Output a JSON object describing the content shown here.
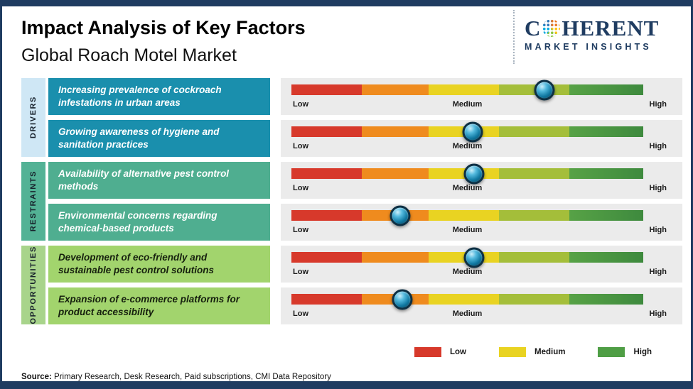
{
  "header": {
    "title": "Impact Analysis of Key Factors",
    "subtitle": "Global Roach Motel Market",
    "logo": {
      "name_left": "C",
      "name_right": "HERENT",
      "tagline": "MARKET INSIGHTS"
    }
  },
  "groups": [
    {
      "label": "DRIVERS"
    },
    {
      "label": "RESTRAINTS"
    },
    {
      "label": "OPPORTUNITIES"
    }
  ],
  "scale": {
    "low": "Low",
    "medium": "Medium",
    "high": "High"
  },
  "rows": [
    {
      "factor": "Increasing prevalence of cockroach infestations in urban areas",
      "group": "DRIVERS",
      "marker_pos": 72
    },
    {
      "factor": "Growing awareness of hygiene and sanitation practices",
      "group": "DRIVERS",
      "marker_pos": 51.5
    },
    {
      "factor": "Availability of alternative pest control methods",
      "group": "RESTRAINTS",
      "marker_pos": 52
    },
    {
      "factor": "Environmental concerns regarding chemical-based products",
      "group": "RESTRAINTS",
      "marker_pos": 31
    },
    {
      "factor": "Development of eco-friendly and sustainable pest control solutions",
      "group": "OPPORTUNITIES",
      "marker_pos": 52
    },
    {
      "factor": "Expansion of e-commerce platforms for product accessibility",
      "group": "OPPORTUNITIES",
      "marker_pos": 31.5
    }
  ],
  "legend": [
    {
      "label": "Low",
      "color": "#d7392b"
    },
    {
      "label": "Medium",
      "color": "#e9d322"
    },
    {
      "label": "High",
      "color": "#4f9e45"
    }
  ],
  "source": {
    "prefix": "Source:",
    "text": "Primary Research, Desk Research, Paid subscriptions, CMI Data Repository"
  },
  "colors": {
    "frame": "#1f3c61",
    "drivers_box": "#1a8fad",
    "restraints_box": "#4fae90",
    "opportunities_box": "#a2d46d",
    "drivers_tab": "#cfe7f5",
    "restraints_tab": "#53b295",
    "opportunities_tab": "#a8d48b",
    "brand_navy": "#1f3c61"
  },
  "chart_data": {
    "type": "bar",
    "title": "Impact Analysis of Key Factors",
    "subtitle": "Global Roach Motel Market",
    "scale": {
      "range": [
        0,
        1
      ],
      "tick_labels": [
        "Low",
        "Medium",
        "High"
      ]
    },
    "legend": [
      "Low",
      "Medium",
      "High"
    ],
    "legend_position": "bottom-right",
    "series": [
      {
        "group": "Drivers",
        "factor": "Increasing prevalence of cockroach infestations in urban areas",
        "impact_position": 0.72,
        "impact_level": "Medium-High"
      },
      {
        "group": "Drivers",
        "factor": "Growing awareness of hygiene and sanitation practices",
        "impact_position": 0.52,
        "impact_level": "Medium"
      },
      {
        "group": "Restraints",
        "factor": "Availability of alternative pest control methods",
        "impact_position": 0.52,
        "impact_level": "Medium"
      },
      {
        "group": "Restraints",
        "factor": "Environmental concerns regarding chemical-based products",
        "impact_position": 0.31,
        "impact_level": "Low-Medium"
      },
      {
        "group": "Opportunities",
        "factor": "Development of eco-friendly and sustainable pest control solutions",
        "impact_position": 0.52,
        "impact_level": "Medium"
      },
      {
        "group": "Opportunities",
        "factor": "Expansion of e-commerce platforms for product accessibility",
        "impact_position": 0.31,
        "impact_level": "Low-Medium"
      }
    ]
  }
}
